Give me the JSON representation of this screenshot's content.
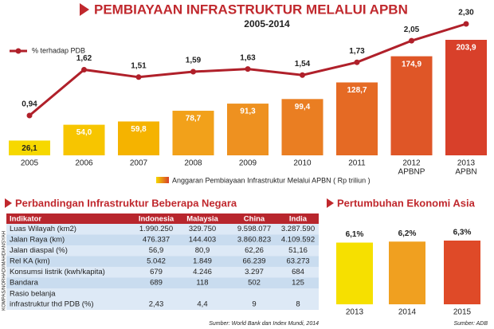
{
  "title": "PEMBIAYAAN INFRASTRUKTUR MELALUI APBN",
  "subtitle": "2005-2014",
  "credit": "KOMPAS/NORHADI/MAHDIANSYAH",
  "chart_data": [
    {
      "type": "combo",
      "categories": [
        "2005",
        "2006",
        "2007",
        "2008",
        "2009",
        "2010",
        "2011",
        "2012",
        "2013"
      ],
      "category_sublabels": [
        null,
        null,
        null,
        null,
        null,
        null,
        null,
        "APBNP",
        "APBN"
      ],
      "series": [
        {
          "name": "Anggaran Pembiayaan Infrastruktur Melalui APBN ( Rp triliun )",
          "kind": "bar",
          "colors": [
            "#f6d800",
            "#f7c500",
            "#f5b300",
            "#f2a11a",
            "#ee9120",
            "#ea7e22",
            "#e56a24",
            "#df5627",
            "#d8402a"
          ],
          "values": [
            26.1,
            54.0,
            59.8,
            78.7,
            91.3,
            99.4,
            128.7,
            174.9,
            203.9
          ],
          "value_labels": [
            "26,1",
            "54,0",
            "59,8",
            "78,7",
            "91,3",
            "99,4",
            "128,7",
            "174,9",
            "203,9"
          ]
        },
        {
          "name": "% terhadap PDB",
          "kind": "line",
          "color": "#b0202a",
          "values": [
            0.94,
            1.62,
            1.51,
            1.59,
            1.63,
            1.54,
            1.73,
            2.05,
            2.3
          ],
          "value_labels": [
            "0,94",
            "1,62",
            "1,51",
            "1,59",
            "1,63",
            "1,54",
            "1,73",
            "2,05",
            "2,30"
          ]
        }
      ]
    },
    {
      "type": "bar",
      "title": "Pertumbuhan Ekonomi Asia",
      "categories": [
        "2013",
        "2014",
        "2015"
      ],
      "colors": [
        "#f6e000",
        "#f0a020",
        "#df4a28"
      ],
      "values": [
        6.1,
        6.2,
        6.3
      ],
      "value_labels": [
        "6,1%",
        "6,2%",
        "6,3%"
      ],
      "source": "Sumber: ADB"
    }
  ],
  "table": {
    "title": "Perbandingan Infrastruktur Beberapa Negara",
    "header": [
      "Indikator",
      "Indonesia",
      "Malaysia",
      "China",
      "India"
    ],
    "rows": [
      [
        "Luas Wilayah (km2)",
        "1.990.250",
        "329.750",
        "9.598.077",
        "3.287.590"
      ],
      [
        "Jalan Raya (km)",
        "476.337",
        "144.403",
        "3.860.823",
        "4.109.592"
      ],
      [
        "Jalan diaspal (%)",
        "56,9",
        "80,9",
        "62,26",
        "51,16"
      ],
      [
        "Rel KA (km)",
        "5.042",
        "1.849",
        "66.239",
        "63.273"
      ],
      [
        "Konsumsi listrik (kwh/kapita)",
        "679",
        "4.246",
        "3.297",
        "684"
      ],
      [
        "Bandara",
        "689",
        "118",
        "502",
        "125"
      ],
      [
        [
          "Rasio belanja",
          "infrastruktur thd PDB (%)"
        ],
        "2,43",
        "4,4",
        "9",
        "8"
      ]
    ],
    "source": "Sumber: World Bank dan Index Mundi, 2014"
  }
}
